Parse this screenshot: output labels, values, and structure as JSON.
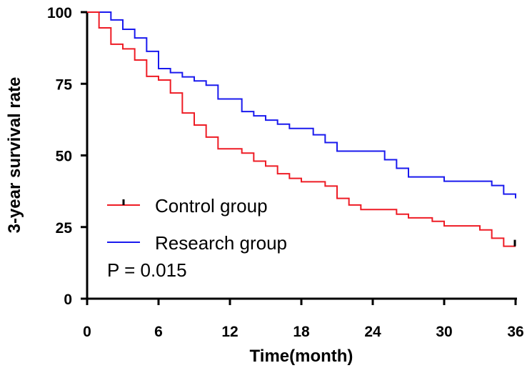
{
  "chart_data": {
    "type": "line",
    "subtype": "kaplan-meier-step",
    "title": "",
    "xlabel": "Time(month)",
    "ylabel": "3-year survival rate",
    "xlim": [
      0,
      36
    ],
    "ylim": [
      0,
      100
    ],
    "xticks": [
      0,
      6,
      12,
      18,
      24,
      30,
      36
    ],
    "yticks": [
      0,
      25,
      50,
      75,
      100
    ],
    "xtick_labels": [
      "0",
      "6",
      "12",
      "18",
      "24",
      "30",
      "36"
    ],
    "ytick_labels": [
      "0",
      "25",
      "50",
      "75",
      "100"
    ],
    "grid": false,
    "legend_position": "center-left",
    "annotation": "P = 0.015",
    "series": [
      {
        "name": "Control group",
        "color": "#ee1c25",
        "censor_at_end": true,
        "x": [
          0,
          1,
          2,
          3,
          4,
          5,
          6,
          7,
          8,
          9,
          10,
          11,
          13,
          14,
          15,
          16,
          17,
          18,
          20,
          21,
          22,
          23,
          26,
          27,
          29,
          30,
          33,
          34,
          35,
          36
        ],
        "y": [
          100,
          94.5,
          88.8,
          87.2,
          83.3,
          77.6,
          76.3,
          71.8,
          64.8,
          60.6,
          56.4,
          52.3,
          50.8,
          48.0,
          46.3,
          43.6,
          42.0,
          40.8,
          39.3,
          35.0,
          32.7,
          31.1,
          29.5,
          28.2,
          27.0,
          25.4,
          24.0,
          21.1,
          18.3,
          18.3
        ]
      },
      {
        "name": "Research group",
        "color": "#1a1aee",
        "censor_at_end": false,
        "x": [
          0,
          2,
          3,
          4,
          5,
          6,
          7,
          8,
          9,
          10,
          11,
          13,
          14,
          15,
          16,
          17,
          19,
          20,
          21,
          25,
          26,
          27,
          30,
          34,
          35,
          36
        ],
        "y": [
          100,
          97.3,
          94.0,
          91.0,
          86.3,
          80.3,
          78.9,
          77.4,
          76.0,
          74.5,
          69.7,
          65.3,
          63.8,
          62.3,
          60.9,
          59.4,
          57.2,
          54.5,
          51.5,
          48.5,
          45.5,
          42.5,
          41.0,
          39.5,
          36.5,
          35.0
        ]
      }
    ]
  }
}
